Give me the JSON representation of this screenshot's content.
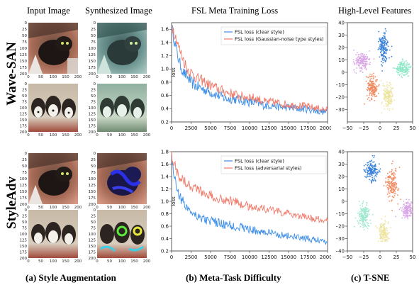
{
  "headers": {
    "input": "Input Image",
    "synth": "Synthesized Image",
    "fsl": "FSL  Meta Training  Loss",
    "tsne": "High-Level Features"
  },
  "row_labels": [
    "Wave-SAN",
    "StyleAdv"
  ],
  "captions": [
    "(a) Style Augmentation",
    "(b) Meta-Task Difficulty",
    "(c) T-SNE"
  ],
  "image_ticks": {
    "y_top": [
      "0",
      "25",
      "50",
      "75",
      "100",
      "125",
      "150",
      "175",
      "200"
    ],
    "x": [
      "0",
      "50",
      "100",
      "150",
      "200"
    ]
  },
  "chart_data": [
    {
      "type": "line",
      "ylabel": "loss",
      "xlim": [
        0,
        20000
      ],
      "ylim": [
        0.2,
        1.7
      ],
      "xticks": [
        "0",
        "2500",
        "5000",
        "7500",
        "10000",
        "12500",
        "15000",
        "17500",
        "20000"
      ],
      "yticks": [
        "0.2",
        "0.4",
        "0.6",
        "0.8",
        "1.0",
        "1.2",
        "1.4",
        "1.6"
      ],
      "legend": "top-right",
      "series": [
        {
          "name": "FSL loss (clear style)",
          "color": "#3b8ee8",
          "x": [
            0,
            500,
            1000,
            1500,
            2000,
            2500,
            3000,
            4000,
            5000,
            6000,
            7000,
            8000,
            9000,
            10000,
            11000,
            12000,
            13000,
            14000,
            15000,
            16000,
            17000,
            18000,
            19000,
            20000
          ],
          "values": [
            1.65,
            1.35,
            1.1,
            0.95,
            0.88,
            0.8,
            0.75,
            0.7,
            0.65,
            0.6,
            0.55,
            0.55,
            0.52,
            0.5,
            0.48,
            0.45,
            0.45,
            0.42,
            0.42,
            0.4,
            0.4,
            0.38,
            0.36,
            0.35
          ]
        },
        {
          "name": "FSL loss (Gaussian-noise type styles)",
          "color": "#f07a6a",
          "x": [
            0,
            500,
            1000,
            1500,
            2000,
            2500,
            3000,
            4000,
            5000,
            6000,
            7000,
            8000,
            9000,
            10000,
            11000,
            12000,
            13000,
            14000,
            15000,
            16000,
            17000,
            18000,
            19000,
            20000
          ],
          "values": [
            1.68,
            1.5,
            1.3,
            1.15,
            1.0,
            0.95,
            0.88,
            0.82,
            0.75,
            0.7,
            0.65,
            0.62,
            0.58,
            0.58,
            0.55,
            0.5,
            0.5,
            0.48,
            0.46,
            0.45,
            0.44,
            0.42,
            0.4,
            0.38
          ]
        }
      ]
    },
    {
      "type": "line",
      "ylabel": "loss",
      "xlim": [
        0,
        20000
      ],
      "ylim": [
        0.2,
        1.8
      ],
      "xticks": [
        "0",
        "2500",
        "5000",
        "7500",
        "10000",
        "12500",
        "15000",
        "17500",
        "20000"
      ],
      "yticks": [
        "0.2",
        "0.4",
        "0.6",
        "0.8",
        "1.0",
        "1.2",
        "1.4",
        "1.6",
        "1.8"
      ],
      "legend": "top-right",
      "series": [
        {
          "name": "FSL loss (clear style)",
          "color": "#3b8ee8",
          "x": [
            0,
            500,
            1000,
            1500,
            2000,
            2500,
            3000,
            4000,
            5000,
            6000,
            7000,
            8000,
            9000,
            10000,
            11000,
            12000,
            13000,
            14000,
            15000,
            16000,
            17000,
            18000,
            19000,
            20000
          ],
          "values": [
            1.7,
            1.3,
            1.1,
            0.98,
            0.9,
            0.85,
            0.8,
            0.72,
            0.68,
            0.65,
            0.62,
            0.6,
            0.58,
            0.55,
            0.52,
            0.5,
            0.48,
            0.46,
            0.44,
            0.42,
            0.4,
            0.38,
            0.38,
            0.35
          ]
        },
        {
          "name": "FSL loss (adversarial styles)",
          "color": "#f07a6a",
          "x": [
            0,
            500,
            1000,
            1500,
            2000,
            2500,
            3000,
            4000,
            5000,
            6000,
            7000,
            8000,
            9000,
            10000,
            11000,
            12000,
            13000,
            14000,
            15000,
            16000,
            17000,
            18000,
            19000,
            20000
          ],
          "values": [
            1.75,
            1.55,
            1.4,
            1.35,
            1.3,
            1.25,
            1.22,
            1.15,
            1.1,
            1.05,
            1.02,
            1.0,
            0.95,
            0.92,
            0.9,
            0.88,
            0.85,
            0.82,
            0.8,
            0.78,
            0.75,
            0.72,
            0.7,
            0.7
          ]
        }
      ]
    },
    {
      "type": "scatter",
      "xlim": [
        -50,
        50
      ],
      "ylim": [
        -40,
        40
      ],
      "xticks": [
        "−50",
        "−25",
        "0",
        "25",
        "50"
      ],
      "yticks": [
        "40",
        "30",
        "20",
        "10",
        "0",
        "−10",
        "−20",
        "−30"
      ],
      "clusters": [
        {
          "color": "#3b82d8",
          "cx": 5,
          "cy": 20,
          "sx": 5,
          "sy": 9
        },
        {
          "color": "#d9a6e6",
          "cx": -28,
          "cy": 9,
          "sx": 8,
          "sy": 5
        },
        {
          "color": "#8fe8c8",
          "cx": 35,
          "cy": 3,
          "sx": 8,
          "sy": 4
        },
        {
          "color": "#f08a60",
          "cx": -12,
          "cy": -12,
          "sx": 6,
          "sy": 7
        },
        {
          "color": "#ede4a0",
          "cx": 12,
          "cy": -18,
          "sx": 6,
          "sy": 7
        }
      ]
    },
    {
      "type": "scatter",
      "xlim": [
        -50,
        50
      ],
      "ylim": [
        -40,
        40
      ],
      "xticks": [
        "−50",
        "−25",
        "0",
        "25",
        "50"
      ],
      "yticks": [
        "40",
        "30",
        "20",
        "10",
        "0",
        "−10",
        "−20",
        "−30",
        "−40"
      ],
      "clusters": [
        {
          "color": "#3b82d8",
          "cx": -12,
          "cy": 25,
          "sx": 7,
          "sy": 6
        },
        {
          "color": "#f08a60",
          "cx": 18,
          "cy": 14,
          "sx": 6,
          "sy": 9
        },
        {
          "color": "#9ee8d0",
          "cx": -25,
          "cy": -12,
          "sx": 7,
          "sy": 7
        },
        {
          "color": "#ede4a0",
          "cx": 5,
          "cy": -25,
          "sx": 6,
          "sy": 6
        },
        {
          "color": "#d9a6e6",
          "cx": 42,
          "cy": -7,
          "sx": 7,
          "sy": 5
        }
      ]
    }
  ]
}
